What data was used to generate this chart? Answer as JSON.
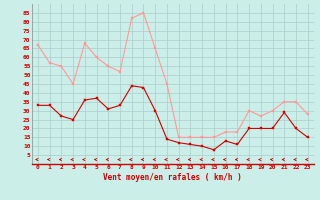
{
  "x": [
    0,
    1,
    2,
    3,
    4,
    5,
    6,
    7,
    8,
    9,
    10,
    11,
    12,
    13,
    14,
    15,
    16,
    17,
    18,
    19,
    20,
    21,
    22,
    23
  ],
  "wind_avg": [
    33,
    33,
    27,
    25,
    36,
    37,
    31,
    33,
    44,
    43,
    30,
    14,
    12,
    11,
    10,
    8,
    13,
    11,
    20,
    20,
    20,
    29,
    20,
    15
  ],
  "wind_gust": [
    67,
    57,
    55,
    45,
    68,
    60,
    55,
    52,
    82,
    85,
    65,
    45,
    15,
    15,
    15,
    15,
    18,
    18,
    30,
    27,
    30,
    35,
    35,
    28
  ],
  "bg_color": "#cceee8",
  "grid_color": "#aacccc",
  "avg_color": "#cc0000",
  "gust_color": "#ff9999",
  "xlabel": "Vent moyen/en rafales ( km/h )",
  "xlabel_color": "#cc0000",
  "ylabel_values": [
    5,
    10,
    15,
    20,
    25,
    30,
    35,
    40,
    45,
    50,
    55,
    60,
    65,
    70,
    75,
    80,
    85
  ],
  "ylim": [
    0,
    90
  ],
  "xlim": [
    -0.5,
    23.5
  ]
}
